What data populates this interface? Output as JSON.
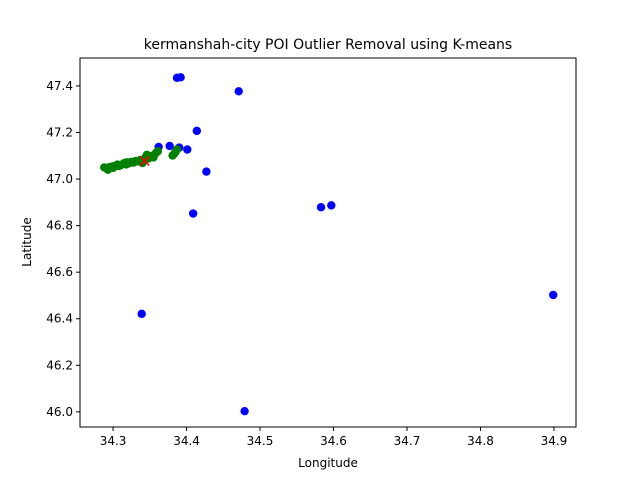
{
  "chart_data": {
    "type": "scatter",
    "title": "kermanshah-city POI Outlier Removal using K-means",
    "xlabel": "Longitude",
    "ylabel": "Latitude",
    "xlim": [
      34.255,
      34.93
    ],
    "ylim": [
      45.935,
      47.52
    ],
    "xticks": [
      "34.3",
      "34.4",
      "34.5",
      "34.6",
      "34.7",
      "34.8",
      "34.9"
    ],
    "yticks": [
      "46.0",
      "46.2",
      "46.4",
      "46.6",
      "46.8",
      "47.0",
      "47.2",
      "47.4"
    ],
    "grid": false,
    "colors": {
      "outliers": "#0000ff",
      "inliers": "#008000",
      "center": "#ff0000"
    },
    "series": [
      {
        "role": "outliers",
        "marker": "circle",
        "color": "#0000ff",
        "points": [
          {
            "x": 34.387,
            "y": 47.435
          },
          {
            "x": 34.392,
            "y": 47.437
          },
          {
            "x": 34.471,
            "y": 47.377
          },
          {
            "x": 34.414,
            "y": 47.207
          },
          {
            "x": 34.362,
            "y": 47.138
          },
          {
            "x": 34.377,
            "y": 47.142
          },
          {
            "x": 34.39,
            "y": 47.135
          },
          {
            "x": 34.401,
            "y": 47.127
          },
          {
            "x": 34.427,
            "y": 47.032
          },
          {
            "x": 34.409,
            "y": 46.852
          },
          {
            "x": 34.583,
            "y": 46.879
          },
          {
            "x": 34.597,
            "y": 46.887
          },
          {
            "x": 34.899,
            "y": 46.502
          },
          {
            "x": 34.339,
            "y": 46.421
          },
          {
            "x": 34.479,
            "y": 46.003
          }
        ]
      },
      {
        "role": "inliers",
        "marker": "circle",
        "color": "#008000",
        "points": [
          {
            "x": 34.288,
            "y": 47.05
          },
          {
            "x": 34.291,
            "y": 47.046
          },
          {
            "x": 34.293,
            "y": 47.04
          },
          {
            "x": 34.295,
            "y": 47.051
          },
          {
            "x": 34.298,
            "y": 47.053
          },
          {
            "x": 34.301,
            "y": 47.055
          },
          {
            "x": 34.304,
            "y": 47.058
          },
          {
            "x": 34.306,
            "y": 47.062
          },
          {
            "x": 34.308,
            "y": 47.056
          },
          {
            "x": 34.311,
            "y": 47.06
          },
          {
            "x": 34.314,
            "y": 47.066
          },
          {
            "x": 34.316,
            "y": 47.07
          },
          {
            "x": 34.319,
            "y": 47.072
          },
          {
            "x": 34.322,
            "y": 47.068
          },
          {
            "x": 34.325,
            "y": 47.074
          },
          {
            "x": 34.328,
            "y": 47.071
          },
          {
            "x": 34.331,
            "y": 47.078
          },
          {
            "x": 34.334,
            "y": 47.076
          },
          {
            "x": 34.337,
            "y": 47.082
          },
          {
            "x": 34.34,
            "y": 47.069
          },
          {
            "x": 34.342,
            "y": 47.085
          },
          {
            "x": 34.344,
            "y": 47.092
          },
          {
            "x": 34.346,
            "y": 47.104
          },
          {
            "x": 34.348,
            "y": 47.088
          },
          {
            "x": 34.351,
            "y": 47.095
          },
          {
            "x": 34.353,
            "y": 47.099
          },
          {
            "x": 34.355,
            "y": 47.093
          },
          {
            "x": 34.357,
            "y": 47.107
          },
          {
            "x": 34.359,
            "y": 47.114
          },
          {
            "x": 34.361,
            "y": 47.12
          },
          {
            "x": 34.381,
            "y": 47.101
          },
          {
            "x": 34.383,
            "y": 47.108
          },
          {
            "x": 34.385,
            "y": 47.116
          },
          {
            "x": 34.387,
            "y": 47.127
          },
          {
            "x": 34.3,
            "y": 47.048
          },
          {
            "x": 34.318,
            "y": 47.063
          }
        ]
      },
      {
        "role": "center",
        "marker": "x",
        "color": "#ff0000",
        "points": [
          {
            "x": 34.343,
            "y": 47.078
          }
        ]
      }
    ]
  }
}
